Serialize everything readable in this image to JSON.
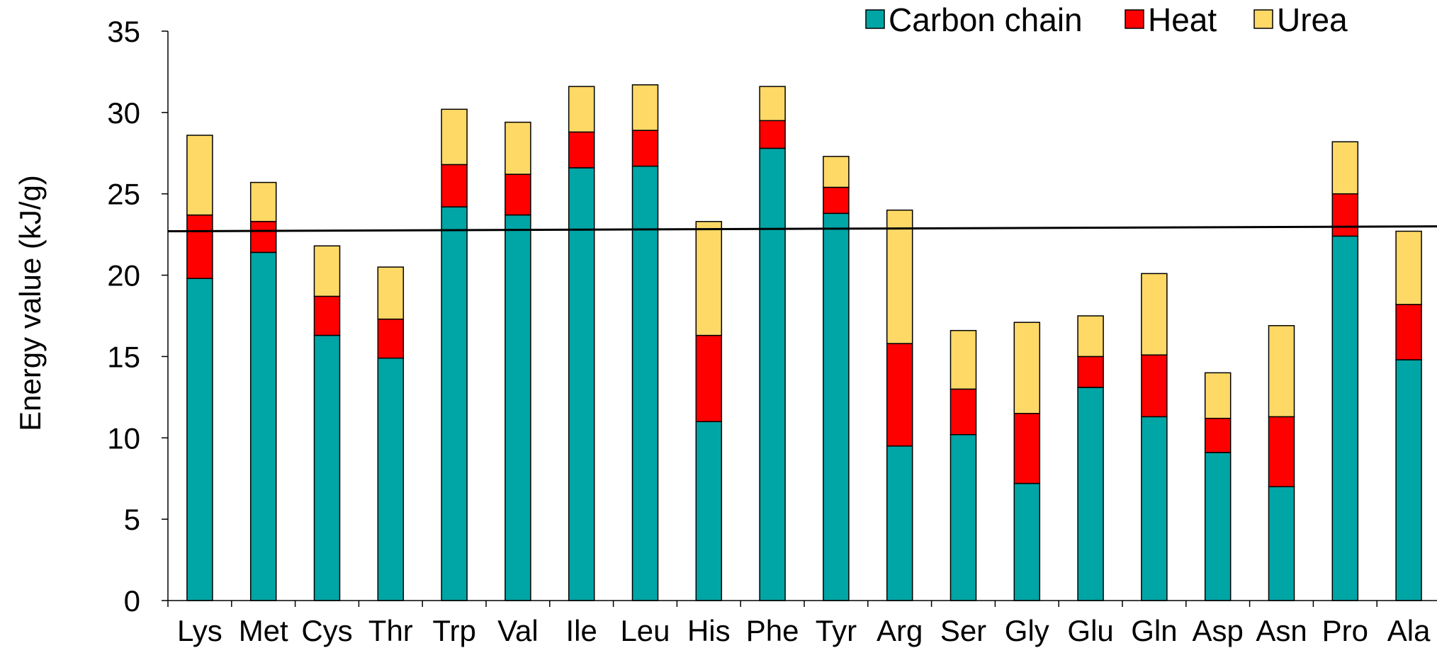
{
  "chart_data": {
    "type": "bar",
    "stacked": true,
    "title": "",
    "xlabel": "",
    "ylabel": "Energy value (kJ/g)",
    "ylim": [
      0,
      35
    ],
    "yticks": [
      "0",
      "5",
      "10",
      "15",
      "20",
      "25",
      "30",
      "35"
    ],
    "grid": false,
    "legend_position": "top-right",
    "categories": [
      "Lys",
      "Met",
      "Cys",
      "Thr",
      "Trp",
      "Val",
      "Ile",
      "Leu",
      "His",
      "Phe",
      "Tyr",
      "Arg",
      "Ser",
      "Gly",
      "Glu",
      "Gln",
      "Asp",
      "Asn",
      "Pro",
      "Ala"
    ],
    "series": [
      {
        "name": "Carbon chain",
        "color": "#00A5A5",
        "values": [
          19.8,
          21.4,
          16.3,
          14.9,
          24.2,
          23.7,
          26.6,
          26.7,
          11.0,
          27.8,
          23.8,
          9.5,
          10.2,
          7.2,
          13.1,
          11.3,
          9.1,
          7.0,
          22.4,
          14.8
        ]
      },
      {
        "name": "Heat",
        "color": "#FF0000",
        "values": [
          3.9,
          1.9,
          2.4,
          2.4,
          2.6,
          2.5,
          2.2,
          2.2,
          5.3,
          1.7,
          1.6,
          6.3,
          2.8,
          4.3,
          1.9,
          3.8,
          2.1,
          4.3,
          2.6,
          3.4
        ]
      },
      {
        "name": "Urea",
        "color": "#FFD966",
        "values": [
          4.9,
          2.4,
          3.1,
          3.2,
          3.4,
          3.2,
          2.8,
          2.8,
          7.0,
          2.1,
          1.9,
          8.2,
          3.6,
          5.6,
          2.5,
          5.0,
          2.8,
          5.6,
          3.2,
          4.5
        ]
      }
    ],
    "reference_line": {
      "y_start": 22.7,
      "y_end": 23.0
    }
  }
}
